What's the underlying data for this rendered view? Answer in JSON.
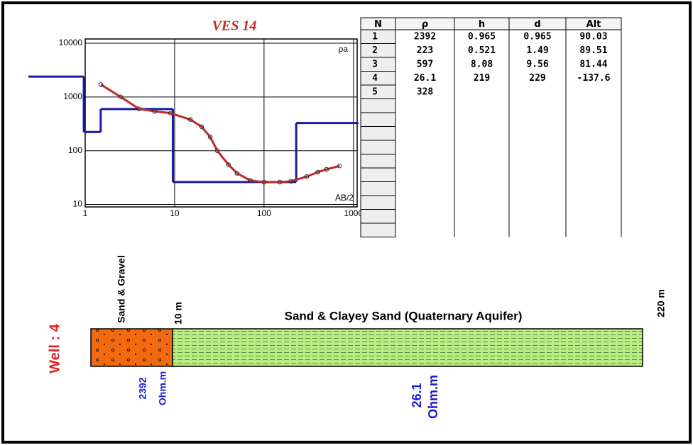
{
  "chart_data": {
    "type": "line",
    "title": "VES 14",
    "y_label": "ρa",
    "x_label": "AB/2",
    "x": [
      1.5,
      2.5,
      4,
      6,
      9,
      15,
      20,
      25,
      30,
      40,
      50,
      70,
      100,
      150,
      200,
      300,
      400,
      500,
      700
    ],
    "series": [
      {
        "color": "#c0282a",
        "values": [
          1700,
          1000,
          600,
          540,
          500,
          380,
          280,
          180,
          100,
          55,
          38,
          28,
          26,
          26,
          27,
          33,
          40,
          45,
          52
        ]
      }
    ],
    "model_color": "#1a1aa8",
    "xscale": "log",
    "yscale": "log",
    "xlim": [
      1,
      1100
    ],
    "ylim": [
      9,
      12000
    ],
    "xticks": [
      1,
      10,
      100,
      1000
    ],
    "yticks": [
      10,
      100,
      1000,
      10000
    ],
    "grid": true
  },
  "table": {
    "header": [
      "N",
      "ρ",
      "h",
      "d",
      "Alt"
    ],
    "rows": [
      [
        1,
        2392,
        0.965,
        0.965,
        90.03
      ],
      [
        2,
        223,
        0.521,
        1.49,
        89.51
      ],
      [
        3,
        597,
        8.08,
        9.56,
        81.44
      ],
      [
        4,
        26.1,
        219,
        229,
        -137.6
      ],
      [
        5,
        328
      ]
    ]
  },
  "section": {
    "well": "Well : 4",
    "layers": [
      {
        "name": "Sand & Gravel",
        "depth": "10 m",
        "resistivity": 2392,
        "unit": "Ohm.m"
      },
      {
        "name": "Sand & Clayey Sand (Quaternary Aquifer)",
        "depth": "220 m",
        "resistivity": 26.1,
        "unit": "Ohm.m"
      }
    ]
  }
}
